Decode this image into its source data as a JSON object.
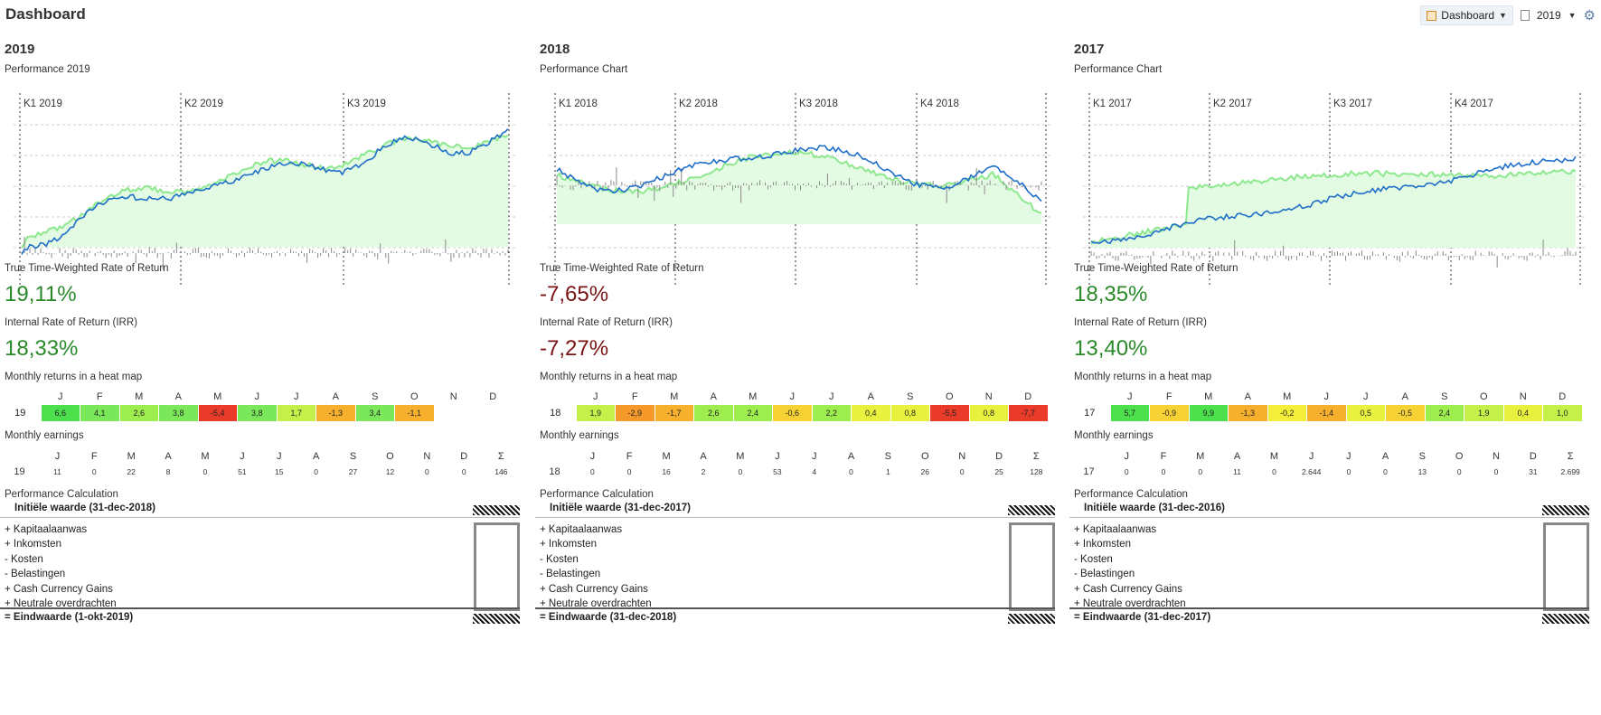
{
  "app": {
    "title": "Dashboard"
  },
  "toolbar": {
    "dashboard_label": "Dashboard",
    "year_label": "2019"
  },
  "columns": [
    {
      "year": "2019",
      "chart_title": "Performance 2019",
      "quarters": [
        "K1 2019",
        "K2 2019",
        "K3 2019"
      ],
      "ttwror_label": "True Time-Weighted Rate of Return",
      "ttwror": "19,11%",
      "irr_label": "Internal Rate of Return (IRR)",
      "irr": "18,33%",
      "heatmap_label": "Monthly returns in a heat map",
      "heatmap_year": "19",
      "heatmap": [
        "6,6",
        "4,1",
        "2,6",
        "3,8",
        "-5,4",
        "3,8",
        "1,7",
        "-1,3",
        "3,4",
        "-1,1",
        "",
        ""
      ],
      "earnings_label": "Monthly earnings",
      "earnings_year": "19",
      "earnings": [
        "11",
        "0",
        "22",
        "8",
        "0",
        "51",
        "15",
        "0",
        "27",
        "12",
        "0",
        "0",
        "146"
      ],
      "calc_label": "Performance Calculation",
      "initial": "Initiële waarde (31-dec-2018)",
      "final": "= Eindwaarde (1-okt-2019)"
    },
    {
      "year": "2018",
      "chart_title": "Performance Chart",
      "quarters": [
        "K1 2018",
        "K2 2018",
        "K3 2018",
        "K4 2018"
      ],
      "ttwror_label": "True Time-Weighted Rate of Return",
      "ttwror": "-7,65%",
      "irr_label": "Internal Rate of Return (IRR)",
      "irr": "-7,27%",
      "heatmap_label": "Monthly returns in a heat map",
      "heatmap_year": "18",
      "heatmap": [
        "1,9",
        "-2,9",
        "-1,7",
        "2,6",
        "2,4",
        "-0,6",
        "2,2",
        "0,4",
        "0,8",
        "-5,5",
        "0,8",
        "-7,7"
      ],
      "earnings_label": "Monthly earnings",
      "earnings_year": "18",
      "earnings": [
        "0",
        "0",
        "16",
        "2",
        "0",
        "53",
        "4",
        "0",
        "1",
        "26",
        "0",
        "25",
        "128"
      ],
      "calc_label": "Performance Calculation",
      "initial": "Initiële waarde (31-dec-2017)",
      "final": "= Eindwaarde (31-dec-2018)"
    },
    {
      "year": "2017",
      "chart_title": "Performance Chart",
      "quarters": [
        "K1 2017",
        "K2 2017",
        "K3 2017",
        "K4 2017"
      ],
      "ttwror_label": "True Time-Weighted Rate of Return",
      "ttwror": "18,35%",
      "irr_label": "Internal Rate of Return (IRR)",
      "irr": "13,40%",
      "heatmap_label": "Monthly returns in a heat map",
      "heatmap_year": "17",
      "heatmap": [
        "5,7",
        "-0,9",
        "9,9",
        "-1,3",
        "-0,2",
        "-1,4",
        "0,5",
        "-0,5",
        "2,4",
        "1,9",
        "0,4",
        "1,0"
      ],
      "earnings_label": "Monthly earnings",
      "earnings_year": "17",
      "earnings": [
        "0",
        "0",
        "0",
        "11",
        "0",
        "2.644",
        "0",
        "0",
        "13",
        "0",
        "0",
        "31",
        "2.699"
      ],
      "calc_label": "Performance Calculation",
      "initial": "Initiële waarde (31-dec-2016)",
      "final": "= Eindwaarde (31-dec-2017)"
    }
  ],
  "month_headers": [
    "J",
    "F",
    "M",
    "A",
    "M",
    "J",
    "J",
    "A",
    "S",
    "O",
    "N",
    "D"
  ],
  "sum_header": "Σ",
  "calc_items": [
    "+ Kapitaalaanwas",
    "+ Inkomsten",
    "-  Kosten",
    "-  Belastingen",
    "+ Cash Currency Gains",
    "+ Neutrale overdrachten"
  ],
  "colors": {
    "positive": "#2a8a2a",
    "negative": "#7a1414",
    "benchmark_line": "#8ee88e",
    "benchmark_fill": "#e3fbe3",
    "portfolio_line": "#1f6fc8"
  }
}
